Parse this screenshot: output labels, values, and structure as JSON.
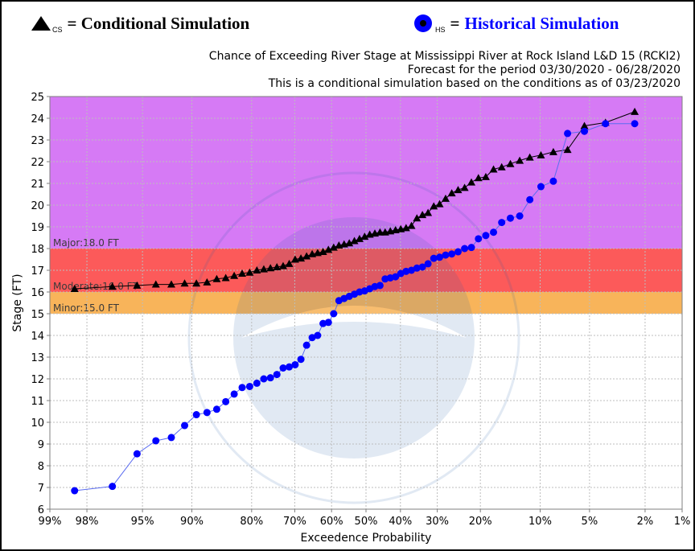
{
  "legend": {
    "cs": {
      "subscript": "CS",
      "text": "= Conditional Simulation",
      "marker": "black-triangle"
    },
    "hs": {
      "subscript": "HS",
      "text": "Historical Simulation",
      "equals": "=",
      "marker": "blue-circle"
    }
  },
  "chart_data": {
    "type": "scatter",
    "title": [
      "Chance of Exceeding River Stage at Mississippi River at Rock Island L&D 15 (RCKI2)",
      "Forecast for the period 03/30/2020 - 06/28/2020",
      "This is a conditional simulation based on the conditions as of 03/23/2020"
    ],
    "xlabel": "Exceedence Probability",
    "ylabel": "Stage (FT)",
    "x_scale": "normal-probability",
    "x_reversed": true,
    "xlim": [
      99,
      1
    ],
    "ylim": [
      6,
      25
    ],
    "x_ticks": [
      99,
      98,
      95,
      90,
      80,
      70,
      60,
      50,
      40,
      30,
      20,
      10,
      5,
      2,
      1
    ],
    "x_tick_labels": [
      "99%",
      "98%",
      "95%",
      "90%",
      "80%",
      "70%",
      "60%",
      "50%",
      "40%",
      "30%",
      "20%",
      "10%",
      "5%",
      "2%",
      "1%"
    ],
    "y_ticks": [
      6,
      7,
      8,
      9,
      10,
      11,
      12,
      13,
      14,
      15,
      16,
      17,
      18,
      19,
      20,
      21,
      22,
      23,
      24,
      25
    ],
    "grid": true,
    "flood_bands": [
      {
        "name": "Major",
        "label": "Major:18.0 FT",
        "from": 18,
        "to": 25,
        "color": "#d67af5"
      },
      {
        "name": "Moderate",
        "label": "Moderate:16.0 FT",
        "from": 16,
        "to": 18,
        "color": "#fc5a5a"
      },
      {
        "name": "Minor",
        "label": "Minor:15.0 FT",
        "from": 15,
        "to": 16,
        "color": "#f8b45a"
      }
    ],
    "series": [
      {
        "name": "Conditional Simulation",
        "color": "#000000",
        "marker": "triangle",
        "x": [
          98.4,
          96.9,
          95.4,
          93.9,
          92.4,
          90.9,
          89.4,
          87.9,
          86.4,
          84.9,
          83.4,
          81.9,
          80.4,
          78.9,
          77.4,
          75.9,
          74.4,
          72.9,
          71.4,
          69.9,
          68.4,
          66.9,
          65.4,
          63.9,
          62.4,
          60.9,
          59.4,
          57.9,
          56.4,
          54.9,
          53.4,
          51.9,
          50.4,
          48.9,
          47.4,
          45.9,
          44.4,
          42.9,
          41.4,
          39.9,
          38.4,
          36.9,
          35.4,
          33.9,
          32.4,
          30.9,
          29.4,
          27.9,
          26.4,
          24.9,
          23.4,
          21.9,
          20.4,
          18.9,
          17.4,
          15.9,
          14.4,
          12.9,
          11.4,
          9.9,
          8.4,
          6.9,
          5.4,
          3.9,
          2.4
        ],
        "y": [
          16.15,
          16.25,
          16.3,
          16.35,
          16.35,
          16.4,
          16.4,
          16.45,
          16.6,
          16.65,
          16.75,
          16.85,
          16.9,
          17.0,
          17.05,
          17.1,
          17.15,
          17.2,
          17.3,
          17.5,
          17.55,
          17.65,
          17.75,
          17.8,
          17.85,
          17.95,
          18.05,
          18.15,
          18.2,
          18.25,
          18.35,
          18.45,
          18.55,
          18.65,
          18.7,
          18.75,
          18.75,
          18.8,
          18.85,
          18.9,
          18.95,
          19.05,
          19.4,
          19.55,
          19.65,
          19.95,
          20.05,
          20.3,
          20.55,
          20.7,
          20.8,
          21.05,
          21.25,
          21.3,
          21.65,
          21.75,
          21.9,
          22.05,
          22.2,
          22.3,
          22.45,
          22.55,
          23.65,
          23.8,
          24.3
        ]
      },
      {
        "name": "Historical Simulation",
        "color": "#0000ff",
        "marker": "circle",
        "x": [
          98.4,
          96.9,
          95.4,
          93.9,
          92.4,
          90.9,
          89.4,
          87.9,
          86.4,
          84.9,
          83.4,
          81.9,
          80.4,
          78.9,
          77.4,
          75.9,
          74.4,
          72.9,
          71.4,
          69.9,
          68.4,
          66.9,
          65.4,
          63.9,
          62.4,
          60.9,
          59.4,
          57.9,
          56.4,
          54.9,
          53.4,
          51.9,
          50.4,
          48.9,
          47.4,
          45.9,
          44.4,
          42.9,
          41.4,
          39.9,
          38.4,
          36.9,
          35.4,
          33.9,
          32.4,
          30.9,
          29.4,
          27.9,
          26.4,
          24.9,
          23.4,
          21.9,
          20.4,
          18.9,
          17.4,
          15.9,
          14.4,
          12.9,
          11.4,
          9.9,
          8.4,
          6.9,
          5.4,
          3.9,
          2.4
        ],
        "y": [
          6.85,
          7.05,
          8.55,
          9.15,
          9.3,
          9.85,
          10.35,
          10.45,
          10.6,
          10.95,
          11.3,
          11.6,
          11.65,
          11.8,
          12.0,
          12.05,
          12.2,
          12.5,
          12.55,
          12.65,
          12.9,
          13.55,
          13.9,
          14.0,
          14.55,
          14.6,
          15.0,
          15.6,
          15.7,
          15.8,
          15.9,
          16.0,
          16.05,
          16.15,
          16.25,
          16.3,
          16.6,
          16.65,
          16.7,
          16.85,
          16.95,
          17.0,
          17.1,
          17.15,
          17.3,
          17.55,
          17.6,
          17.7,
          17.75,
          17.85,
          18.0,
          18.05,
          18.45,
          18.6,
          18.75,
          19.2,
          19.4,
          19.5,
          20.25,
          20.85,
          21.1,
          23.3,
          23.4,
          23.75,
          23.75
        ]
      }
    ]
  }
}
